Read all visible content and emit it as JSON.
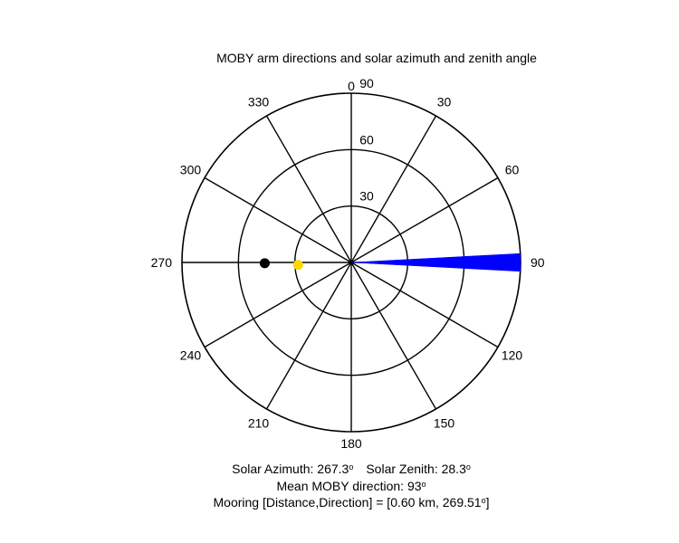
{
  "figure_window_title": "",
  "chart_data": {
    "type": "polar",
    "title": "MOBY arm directions and solar azimuth and zenith angle",
    "angle_ticks": [
      0,
      30,
      60,
      90,
      120,
      150,
      180,
      210,
      240,
      270,
      300,
      330
    ],
    "angle_tick_labels": [
      "0",
      "30",
      "60",
      "90",
      "120",
      "150",
      "180",
      "210",
      "240",
      "270",
      "300",
      "330"
    ],
    "radial_ticks": [
      30,
      60,
      90
    ],
    "radial_tick_labels": [
      "30",
      "60",
      "90"
    ],
    "rmax": 90,
    "angle_orientation": "clockwise from north",
    "grid": true,
    "series": [
      {
        "marker": "filled-wedge",
        "color": "#0000ff",
        "direction_range_deg": [
          87,
          93
        ],
        "radius": 90
      },
      {
        "marker": "filled-circle",
        "color": "#000000",
        "direction_deg": 269.51,
        "radius": 46
      },
      {
        "marker": "filled-circle",
        "color": "#ffd700",
        "direction_deg": 267.3,
        "radius": 28.3
      }
    ]
  },
  "info": {
    "solar_azimuth_label": "Solar Azimuth:",
    "solar_azimuth_value": "267.3",
    "solar_zenith_label": "Solar Zenith:",
    "solar_zenith_value": "28.3",
    "mean_direction_label": "Mean MOBY direction:",
    "mean_direction_value": "93",
    "mooring_label": "Mooring [Distance,Direction] = [0.60 km, 269.51",
    "mooring_close": "]",
    "degree_symbol": "o"
  }
}
